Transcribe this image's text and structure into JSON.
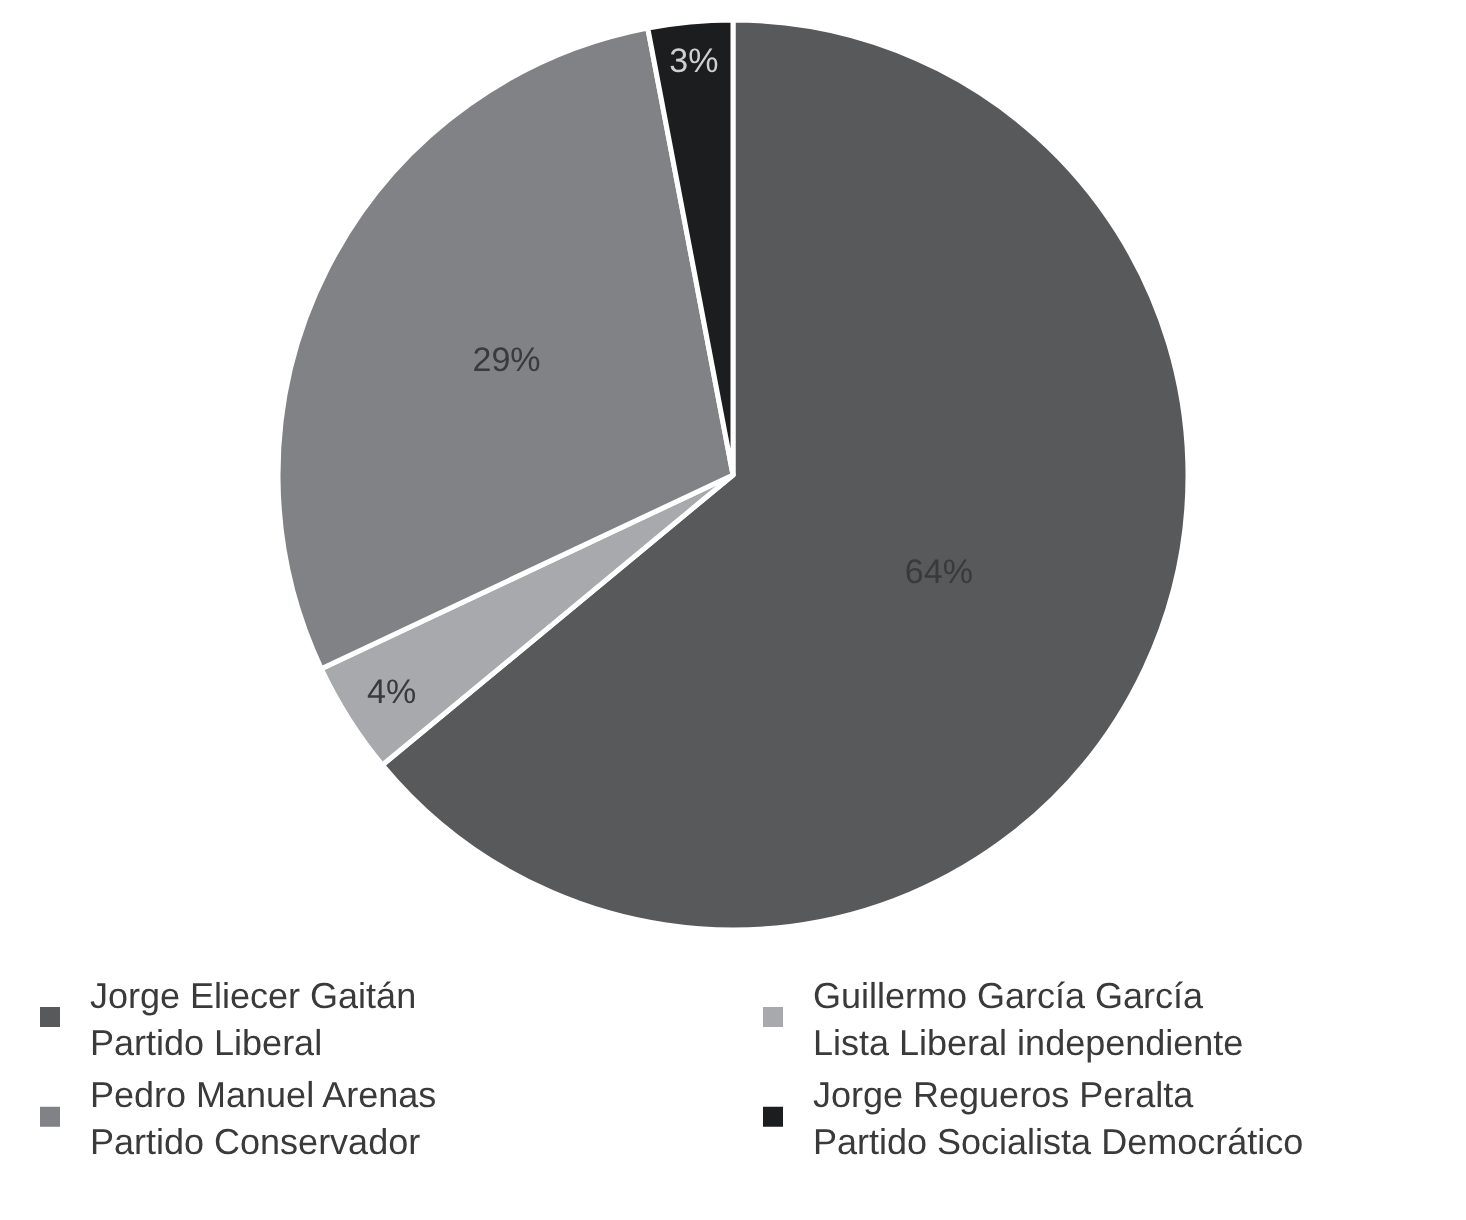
{
  "chart_data": {
    "type": "pie",
    "categories": [
      "Jorge Eliecer Gaitán\nPartido Liberal",
      "Guillermo García García\nLista Liberal independiente",
      "Pedro Manuel Arenas\nPartido Conservador",
      "Jorge Regueros Peralta\nPartido Socialista Democrático"
    ],
    "values": [
      64,
      4,
      29,
      3
    ],
    "value_labels": [
      "64%",
      "4%",
      "29%",
      "3%"
    ],
    "colors": [
      "#58595b",
      "#a7a9ac",
      "#808285",
      "#1c1d1f"
    ],
    "legend": "bottom"
  }
}
